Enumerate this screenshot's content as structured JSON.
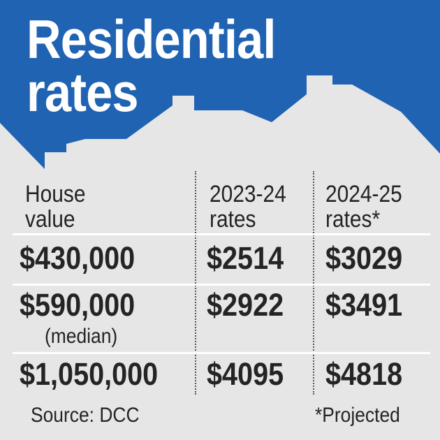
{
  "graphic": {
    "title_line_1": "Residential",
    "title_line_2": "rates",
    "colors": {
      "header_blue": "#1f63b2",
      "background_gray": "#e6e6e7",
      "text_dark": "#242424",
      "row_line": "#ffffff"
    },
    "icons": [
      "house-roof-icon",
      "chimney-icon"
    ]
  },
  "table": {
    "headers": {
      "house_value_line_1": "House",
      "house_value_line_2": "value",
      "rates_2023_line_1": "2023-24",
      "rates_2023_line_2": "rates",
      "rates_2024_line_1": "2024-25",
      "rates_2024_line_2": "rates*"
    },
    "rows": [
      {
        "house_value": "$430,000",
        "rates_2023_24": "$2514",
        "rates_2024_25": "$3029"
      },
      {
        "house_value": "$590,000",
        "note": "(median)",
        "rates_2023_24": "$2922",
        "rates_2024_25": "$3491"
      },
      {
        "house_value": "$1,050,000",
        "rates_2023_24": "$4095",
        "rates_2024_25": "$4818"
      }
    ]
  },
  "footer": {
    "source": "Source: DCC",
    "projected_note": "*Projected"
  }
}
